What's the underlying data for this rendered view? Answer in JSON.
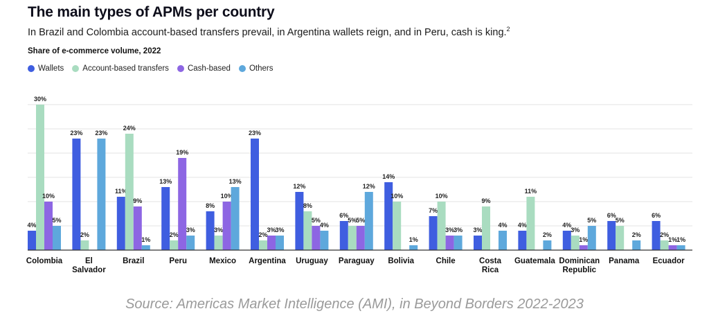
{
  "header": {
    "title": "The main types of APMs per country",
    "subtitle": "In Brazil and Colombia account-based transfers prevail, in Argentina wallets reign, and in Peru, cash is king.",
    "subtitle_note": "2",
    "measure": "Share of e-commerce volume, 2022"
  },
  "source": "Source: Americas Market Intelligence (AMI), in Beyond Borders 2022-2023",
  "colors": {
    "wallets": "#3f5ee0",
    "account": "#a9dcc0",
    "cash": "#8d66e3",
    "others": "#5ea8dc",
    "grid": "#e3e3e3",
    "axis": "#333333"
  },
  "chart_data": {
    "type": "bar",
    "categories": [
      "Colombia",
      "El Salvador",
      "Brazil",
      "Peru",
      "Mexico",
      "Argentina",
      "Uruguay",
      "Paraguay",
      "Bolivia",
      "Chile",
      "Costa Rica",
      "Guatemala",
      "Dominican Republic",
      "Panama",
      "Ecuador"
    ],
    "series": [
      {
        "name": "Wallets",
        "key": "wallets",
        "values": [
          4,
          23,
          11,
          13,
          8,
          23,
          12,
          6,
          14,
          7,
          3,
          4,
          4,
          6,
          6
        ]
      },
      {
        "name": "Account-based transfers",
        "key": "account",
        "values": [
          30,
          2,
          24,
          2,
          3,
          2,
          8,
          5,
          10,
          10,
          9,
          11,
          3,
          5,
          2
        ]
      },
      {
        "name": "Cash-based",
        "key": "cash",
        "values": [
          10,
          null,
          9,
          19,
          10,
          3,
          5,
          5,
          null,
          3,
          null,
          null,
          1,
          null,
          1
        ]
      },
      {
        "name": "Others",
        "key": "others",
        "values": [
          5,
          23,
          1,
          3,
          13,
          3,
          4,
          12,
          1,
          3,
          4,
          2,
          5,
          2,
          1
        ]
      }
    ],
    "labels": [
      [
        "4%",
        "30%",
        "10%",
        "5%"
      ],
      [
        "23%",
        "2%",
        "",
        "23%"
      ],
      [
        "11%",
        "24%",
        "9%",
        "1%"
      ],
      [
        "13%",
        "2%",
        "19%",
        "3%"
      ],
      [
        "8%",
        "3%",
        "10%",
        "13%"
      ],
      [
        "23%",
        "2%",
        "3%",
        "3%"
      ],
      [
        "12%",
        "8%",
        "5%",
        "4%"
      ],
      [
        "6%",
        "5%",
        "5%",
        "12%"
      ],
      [
        "14%",
        "10%",
        "",
        "1%"
      ],
      [
        "7%",
        "10%",
        "3%",
        "3%"
      ],
      [
        "3%",
        "9%",
        "",
        "4%"
      ],
      [
        "4%",
        "11%",
        "",
        "2%"
      ],
      [
        "4%",
        "3%",
        "1%",
        "5%"
      ],
      [
        "6%",
        "5%",
        "",
        "2%"
      ],
      [
        "6%",
        "2%",
        "1%",
        "1%"
      ]
    ],
    "xlabel": "",
    "ylabel": "",
    "ylim": [
      0,
      30
    ],
    "grid": true,
    "legend_position": "top-left"
  }
}
